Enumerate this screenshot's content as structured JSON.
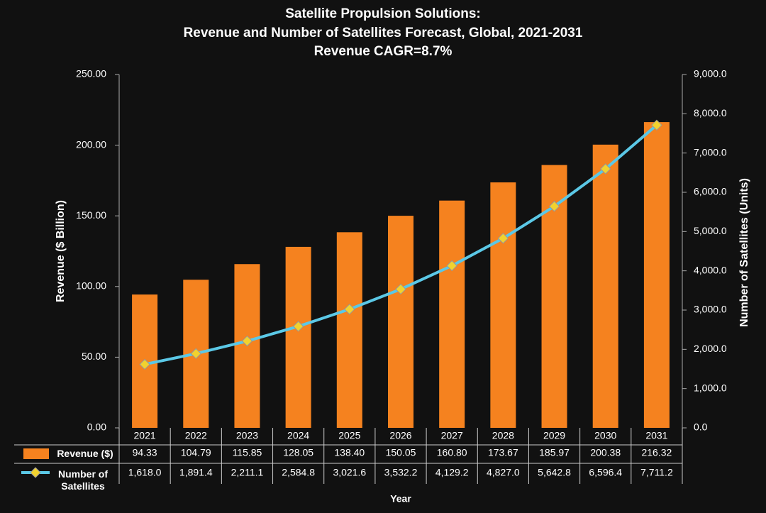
{
  "chart_data": {
    "type": "bar-line",
    "title": [
      "Satellite Propulsion Solutions:",
      "Revenue and Number of Satellites Forecast, Global, 2021-2031",
      "Revenue CAGR=8.7%"
    ],
    "x_label": "Year",
    "y_label": "Revenue ($ Billion)",
    "y2_label": "Number of Satellites (Units)",
    "categories": [
      "2021",
      "2022",
      "2023",
      "2024",
      "2025",
      "2026",
      "2027",
      "2028",
      "2029",
      "2030",
      "2031"
    ],
    "series": [
      {
        "name": "Revenue ($)",
        "type": "bar",
        "color": "#f5821f",
        "values": [
          94.33,
          104.79,
          115.85,
          128.05,
          138.4,
          150.05,
          160.8,
          173.67,
          185.97,
          200.38,
          216.32
        ],
        "value_labels": [
          "94.33",
          "104.79",
          "115.85",
          "128.05",
          "138.40",
          "150.05",
          "160.80",
          "173.67",
          "185.97",
          "200.38",
          "216.32"
        ]
      },
      {
        "name": "Number of Satellites",
        "type": "line",
        "axis": "y2",
        "color": "#5bc8e6",
        "marker_color": "#f2d22e",
        "values": [
          1618.0,
          1891.4,
          2211.1,
          2584.8,
          3021.6,
          3532.2,
          4129.2,
          4827.0,
          5642.8,
          6596.4,
          7711.2
        ],
        "value_labels": [
          "1,618.0",
          "1,891.4",
          "2,211.1",
          "2,584.8",
          "3,021.6",
          "3,532.2",
          "4,129.2",
          "4,827.0",
          "5,642.8",
          "6,596.4",
          "7,711.2"
        ]
      }
    ],
    "ylim": [
      0,
      250
    ],
    "yticks": [
      {
        "value": 0,
        "label": "0.00"
      },
      {
        "value": 50,
        "label": "50.00"
      },
      {
        "value": 100,
        "label": "100.00"
      },
      {
        "value": 150,
        "label": "150.00"
      },
      {
        "value": 200,
        "label": "200.00"
      },
      {
        "value": 250,
        "label": "250.00"
      }
    ],
    "y2lim": [
      0,
      9000
    ],
    "y2ticks": [
      {
        "value": 0,
        "label": "0.0"
      },
      {
        "value": 1000,
        "label": "1,000.0"
      },
      {
        "value": 2000,
        "label": "2,000.0"
      },
      {
        "value": 3000,
        "label": "3,000.0"
      },
      {
        "value": 4000,
        "label": "4,000.0"
      },
      {
        "value": 5000,
        "label": "5,000.0"
      },
      {
        "value": 6000,
        "label": "6,000.0"
      },
      {
        "value": 7000,
        "label": "7,000.0"
      },
      {
        "value": 8000,
        "label": "8,000.0"
      },
      {
        "value": 9000,
        "label": "9,000.0"
      }
    ]
  }
}
